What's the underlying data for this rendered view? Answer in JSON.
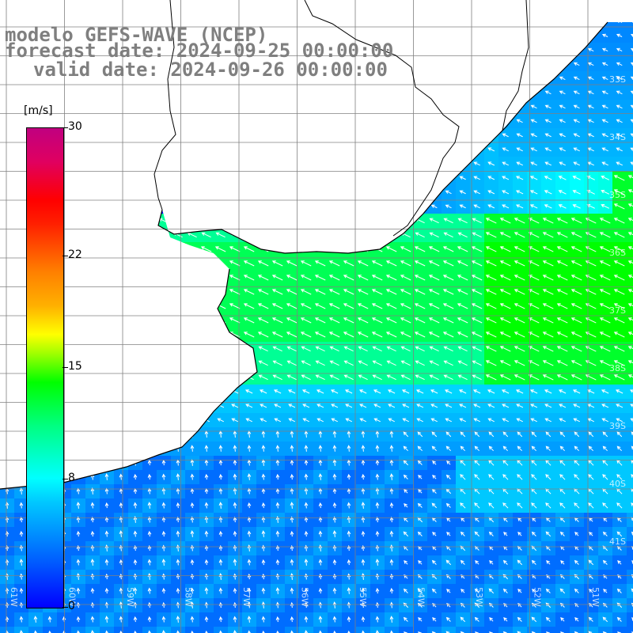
{
  "header": {
    "model": "modelo GEFS-WAVE (NCEP)",
    "forecast": "forecast date: 2024-09-25 00:00:00",
    "valid": "valid date: 2024-09-26 00:00:00"
  },
  "colorbar": {
    "unit": "[m/s]",
    "ticks": [
      {
        "label": "30",
        "value": 30
      },
      {
        "label": "22",
        "value": 22
      },
      {
        "label": "15",
        "value": 15
      },
      {
        "label": "8",
        "value": 8
      },
      {
        "label": "0",
        "value": 0
      }
    ],
    "min": 0,
    "max": 30
  },
  "map": {
    "lat_labels": [
      "33S",
      "34S",
      "35S",
      "36S",
      "37S",
      "38S",
      "39S",
      "40S",
      "41S"
    ],
    "lon_labels": [
      "61W",
      "60W",
      "59W",
      "58W",
      "57W",
      "56W",
      "55W",
      "54W",
      "53W",
      "52W",
      "51W"
    ],
    "colors": {
      "land": "#ffffff",
      "grid": "#808080",
      "coast": "#000000",
      "arrow": "#ffffff"
    }
  }
}
